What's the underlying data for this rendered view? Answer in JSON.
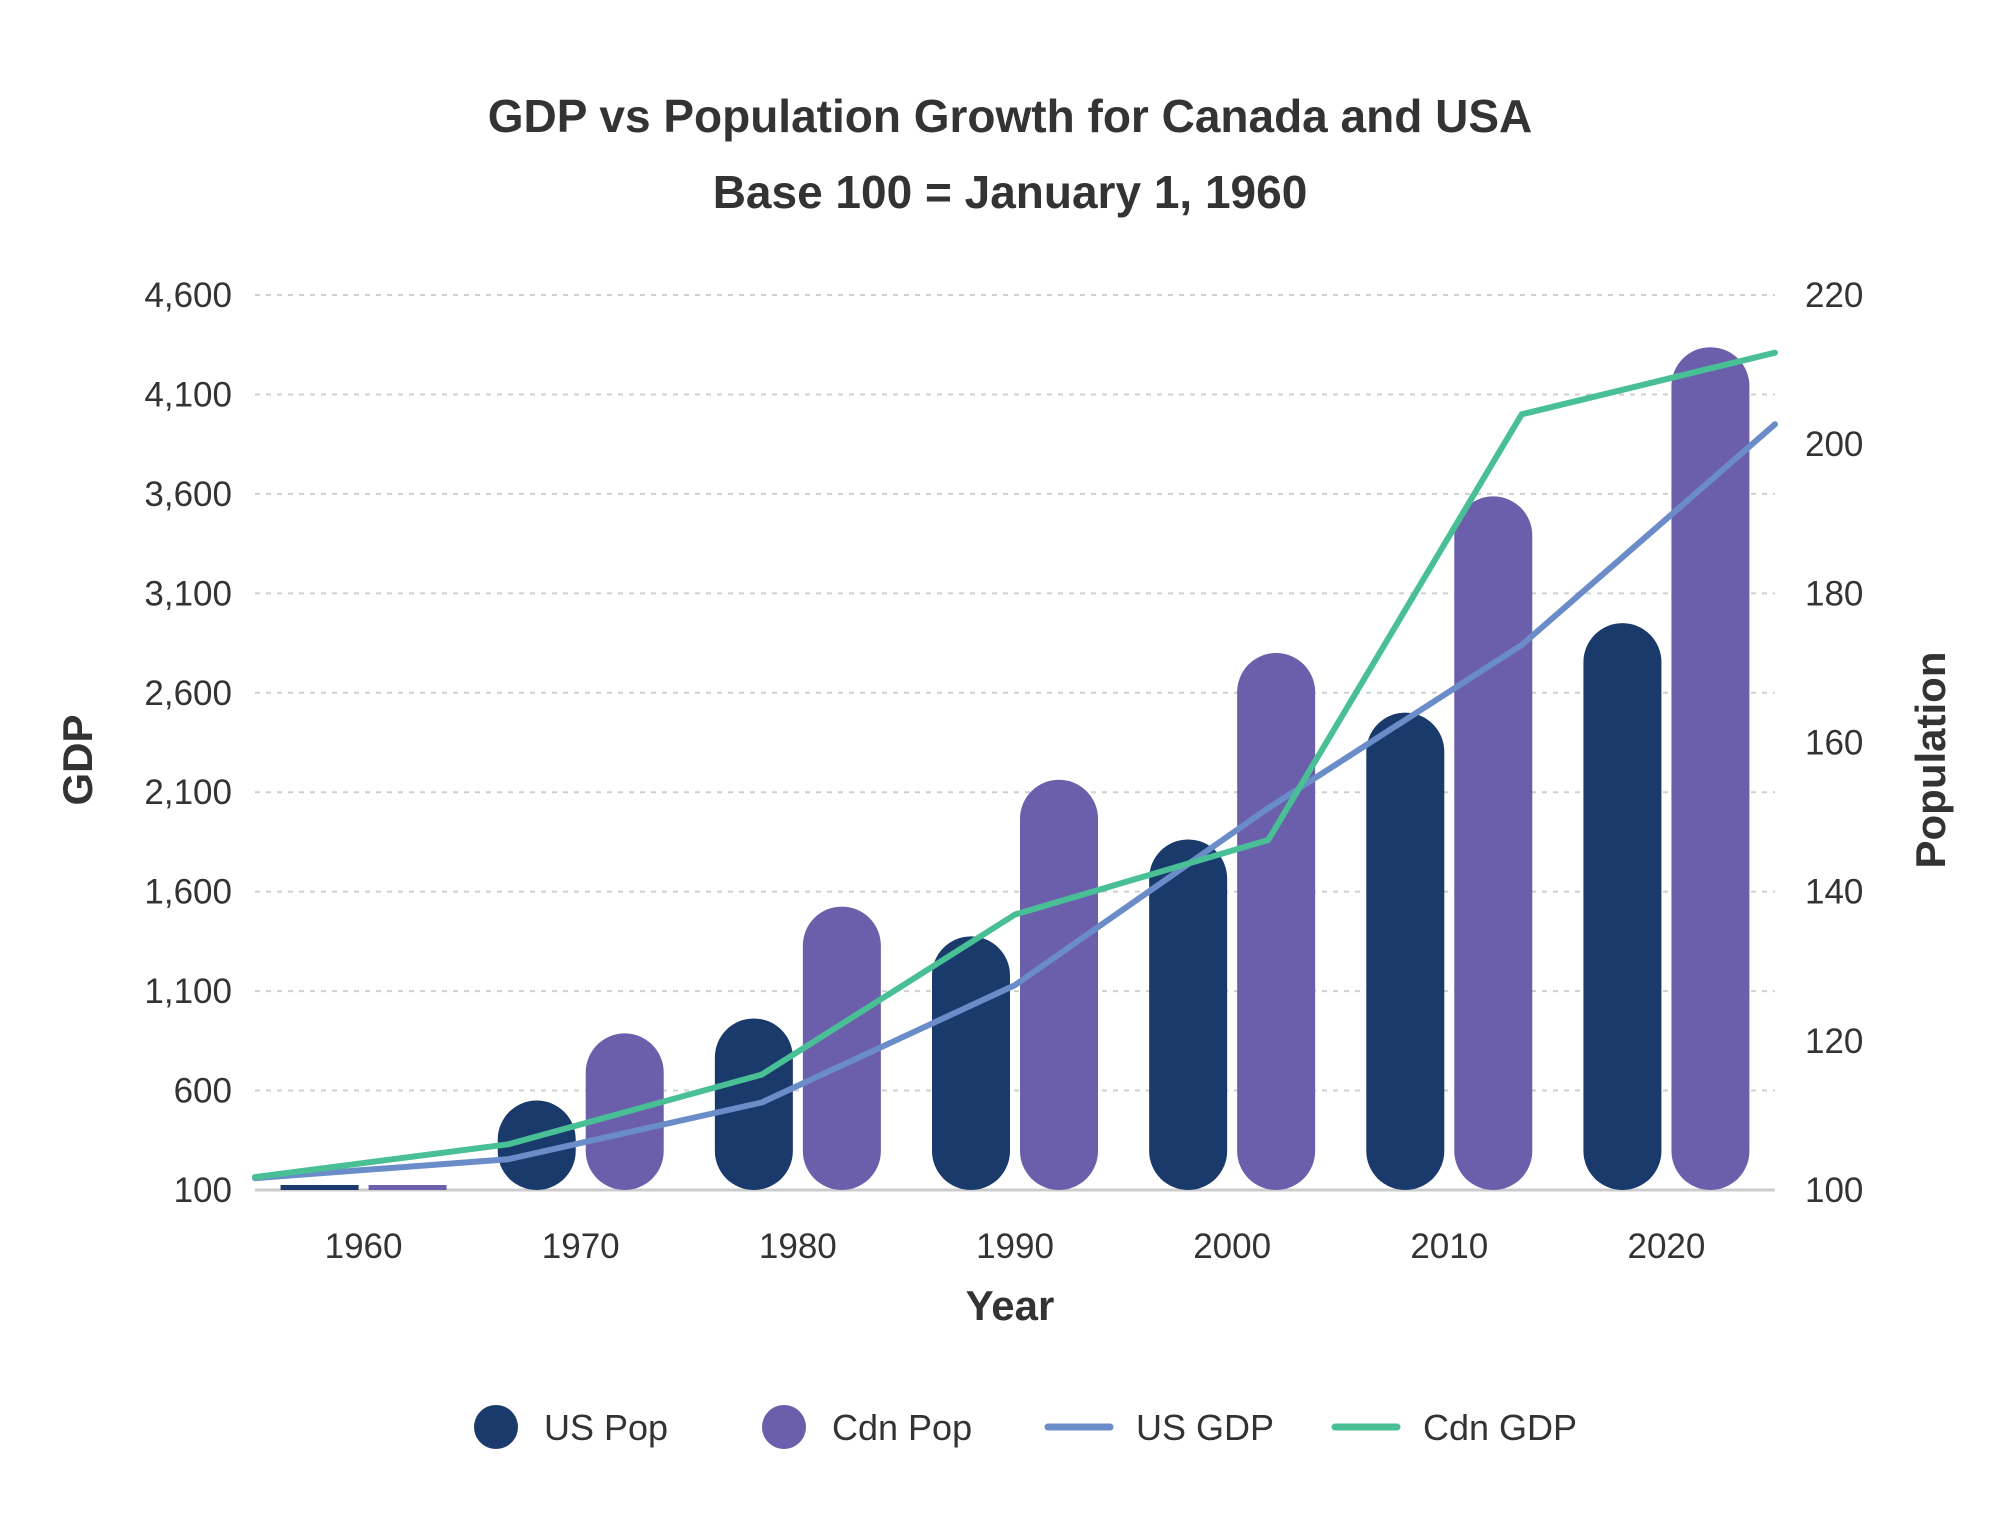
{
  "chart_data": {
    "type": "bar",
    "title": "GDP vs Population Growth for Canada and USA",
    "subtitle": "Base 100 = January 1, 1960",
    "xlabel": "Year",
    "ylabel_left": "GDP",
    "ylabel_right": "Population",
    "categories": [
      "1960",
      "1970",
      "1980",
      "1990",
      "2000",
      "2010",
      "2020"
    ],
    "ylim_left": [
      100,
      4600
    ],
    "yticks_left": [
      "100",
      "600",
      "1,100",
      "1,600",
      "2,100",
      "2,600",
      "3,100",
      "3,600",
      "4,100",
      "4,600"
    ],
    "ylim_right": [
      100,
      220
    ],
    "yticks_right": [
      "100",
      "120",
      "140",
      "160",
      "180",
      "200",
      "220"
    ],
    "grid": true,
    "legend_position": "bottom",
    "series": [
      {
        "name": "US Pop",
        "kind": "bar",
        "axis": "right",
        "color": "#193a6a",
        "values": [
          100,
          112,
          123,
          134,
          147,
          164,
          176
        ]
      },
      {
        "name": "Cdn Pop",
        "kind": "bar",
        "axis": "right",
        "color": "#6b5fab",
        "values": [
          100,
          121,
          138,
          155,
          172,
          193,
          213
        ]
      },
      {
        "name": "US GDP",
        "kind": "line",
        "axis": "left",
        "color": "#6a8cc8",
        "values": [
          160,
          255,
          540,
          1130,
          2020,
          2840,
          3950
        ]
      },
      {
        "name": "Cdn GDP",
        "kind": "line",
        "axis": "left",
        "color": "#48bf95",
        "values": [
          165,
          330,
          680,
          1485,
          1860,
          4000,
          4310
        ]
      }
    ]
  }
}
